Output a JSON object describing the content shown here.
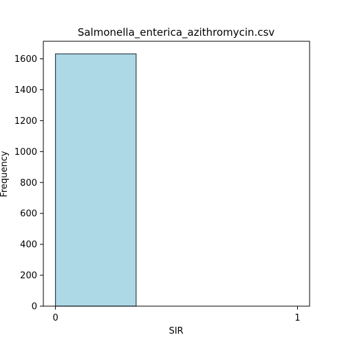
{
  "chart_data": {
    "type": "bar",
    "title": "Salmonella_enterica_azithromycin.csv",
    "xlabel": "SIR",
    "ylabel": "Frequency",
    "x_ticks": [
      "0",
      "1"
    ],
    "y_ticks": [
      "0",
      "200",
      "400",
      "600",
      "800",
      "1000",
      "1200",
      "1400",
      "1600"
    ],
    "bins": [
      {
        "from": 0,
        "to": 0.3333,
        "value": 1632
      },
      {
        "from": 0.3333,
        "to": 0.6667,
        "value": 0
      },
      {
        "from": 0.6667,
        "to": 1,
        "value": 0
      }
    ],
    "xlim": [
      -0.05,
      1.05
    ],
    "ylim": [
      0,
      1713.6
    ],
    "grid": false,
    "colors": {
      "bar_fill": "#add8e6",
      "bar_edge": "#2f3f4a",
      "axis": "#000000",
      "background": "#ffffff"
    }
  }
}
